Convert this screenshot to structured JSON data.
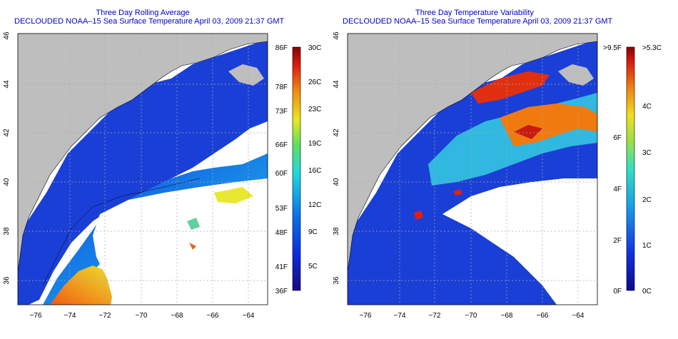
{
  "left_panel": {
    "title": "Three Day Rolling Average",
    "subtitle": "DECLOUDED NOAA–15 Sea Surface Temperature April 03, 2009 21:37 GMT",
    "lon_ticks": [
      "−76",
      "−74",
      "−72",
      "−70",
      "−68",
      "−66",
      "−64"
    ],
    "lat_ticks": [
      "46",
      "44",
      "42",
      "40",
      "38",
      "36"
    ],
    "colorbar_f": [
      "86F",
      "78F",
      "73F",
      "66F",
      "60F",
      "53F",
      "48F",
      "41F",
      "36F"
    ],
    "colorbar_c": [
      "30C",
      "26C",
      "23C",
      "19C",
      "16C",
      "12C",
      "9C",
      "5C"
    ]
  },
  "right_panel": {
    "title": "Three Day Temperature Variability",
    "subtitle": "DECLOUDED NOAA–15 Sea Surface Temperature April 03, 2009 21:37 GMT",
    "lon_ticks": [
      "−76",
      "−74",
      "−72",
      "−70",
      "−68",
      "−66",
      "−64"
    ],
    "lat_ticks": [
      "46",
      "44",
      "42",
      "40",
      "38",
      "36"
    ],
    "colorbar_f": [
      ">9.5F",
      "6F",
      "4F",
      "2F",
      "0F"
    ],
    "colorbar_c": [
      ">5.3C",
      "4C",
      "3C",
      "2C",
      "1C",
      "0C"
    ]
  },
  "colors": {
    "land": "#bebebe",
    "cloud": "#ffffff",
    "cold_sst": "#1a3fd6",
    "accent_title": "#0000c8"
  }
}
